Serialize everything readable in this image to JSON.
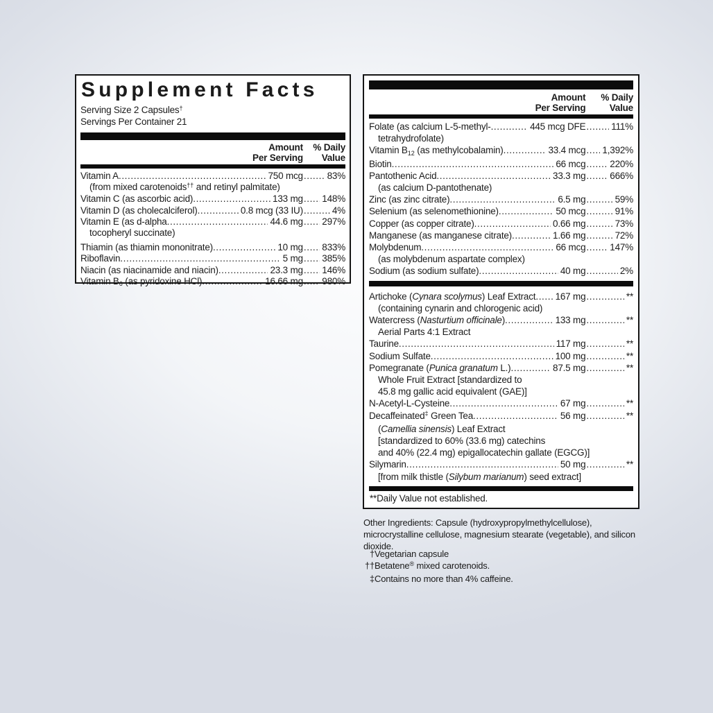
{
  "background": {
    "edge_color": "#d8dce5",
    "center_color": "#fdfdfe"
  },
  "panel_left": {
    "title": "Supplement Facts",
    "serving_size": "Serving Size 2 Capsules",
    "serving_size_mark": "†",
    "servings_per_container": "Servings Per Container 21",
    "amount_header": [
      "Amount",
      "Per Serving"
    ],
    "dv_header": [
      "% Daily",
      "Value"
    ],
    "rows": [
      {
        "name": "Vitamin A",
        "amount": "750 mcg",
        "dv": "83%",
        "sublines": [
          [
            [
              "",
              "(from mixed carotenoids"
            ],
            [
              "sup",
              "††"
            ],
            [
              "",
              " and retinyl palmitate)"
            ]
          ]
        ]
      },
      {
        "name": "Vitamin C (as ascorbic acid) ",
        "amount": "133 mg",
        "dv": "148%"
      },
      {
        "name": "Vitamin D (as cholecalciferol) ",
        "amount": "0.8 mcg (33 IU)",
        "dv": "4%"
      },
      {
        "name": "Vitamin E (as d-alpha ",
        "amount": "44.6 mg",
        "dv": "297%",
        "sublines": [
          "tocopheryl succinate)"
        ]
      },
      {
        "name": "Thiamin (as thiamin mononitrate) ",
        "amount": "10 mg",
        "dv": "833%",
        "gap": true
      },
      {
        "name": "Riboflavin ",
        "amount": "5 mg",
        "dv": "385%"
      },
      {
        "name": "Niacin (as niacinamide and niacin) ",
        "amount": "23.3 mg",
        "dv": "146%"
      },
      {
        "name": [
          [
            "",
            "Vitamin B"
          ],
          [
            "sub",
            "6"
          ],
          [
            "",
            " (as pyridoxine HCl) "
          ]
        ],
        "amount": "16.66 mg",
        "dv": "980%"
      }
    ]
  },
  "panel_right": {
    "amount_header": [
      "Amount",
      "Per Serving"
    ],
    "dv_header": [
      "% Daily",
      "Value"
    ],
    "rows_minerals": [
      {
        "name": "Folate (as calcium L-5-methyl- ",
        "amount": "445 mcg DFE",
        "dv": "111%",
        "sublines": [
          "tetrahydrofolate)"
        ]
      },
      {
        "name": [
          [
            "",
            "Vitamin B"
          ],
          [
            "sub",
            "12"
          ],
          [
            "",
            " (as methylcobalamin) "
          ]
        ],
        "amount": "33.4 mcg",
        "dv": "1,392%"
      },
      {
        "name": "Biotin ",
        "amount": "66 mcg",
        "dv": "220%"
      },
      {
        "name": "Pantothenic Acid",
        "amount": "33.3 mg",
        "dv": "666%",
        "sublines": [
          "(as calcium D-pantothenate)"
        ]
      },
      {
        "name": "Zinc (as zinc citrate) ",
        "amount": "6.5 mg",
        "dv": "59%"
      },
      {
        "name": "Selenium (as selenomethionine) ",
        "amount": "50 mcg",
        "dv": "91%"
      },
      {
        "name": "Copper (as copper citrate) ",
        "amount": "0.66 mg",
        "dv": "73%"
      },
      {
        "name": "Manganese (as manganese citrate) ",
        "amount": "1.66 mg",
        "dv": "72%"
      },
      {
        "name": "Molybdenum",
        "amount": "66 mcg",
        "dv": "147%",
        "sublines": [
          "(as molybdenum aspartate complex)"
        ]
      },
      {
        "name": "Sodium (as sodium sulfate) ",
        "amount": "40 mg",
        "dv": "2%"
      }
    ],
    "rows_botanicals": [
      {
        "name": [
          [
            "",
            "Artichoke ("
          ],
          [
            "i",
            "Cynara scolymus"
          ],
          [
            "",
            ") Leaf Extract"
          ]
        ],
        "amount": "167 mg",
        "dv": "**",
        "sublines": [
          "(containing cynarin and chlorogenic acid)"
        ]
      },
      {
        "name": [
          [
            "",
            "Watercress ("
          ],
          [
            "i",
            "Nasturtium officinale"
          ],
          [
            "",
            ")"
          ]
        ],
        "amount": "133 mg",
        "dv": "**",
        "sublines": [
          "Aerial Parts 4:1 Extract"
        ]
      },
      {
        "name": "Taurine ",
        "amount": "117 mg",
        "dv": "**"
      },
      {
        "name": "Sodium Sulfate ",
        "amount": "100 mg",
        "dv": "**"
      },
      {
        "name": [
          [
            "",
            "Pomegranate ("
          ],
          [
            "i",
            "Punica granatum"
          ],
          [
            "",
            " L.) "
          ]
        ],
        "amount": "87.5 mg",
        "dv": "**",
        "sublines": [
          "Whole Fruit Extract [standardized to",
          "45.8 mg gallic acid equivalent (GAE)]"
        ]
      },
      {
        "name": "N-Acetyl-L-Cysteine ",
        "amount": "67 mg",
        "dv": "**"
      },
      {
        "name": [
          [
            "",
            "Decaffeinated"
          ],
          [
            "sup",
            "‡"
          ],
          [
            "",
            " Green Tea"
          ]
        ],
        "amount": "56 mg",
        "dv": "**",
        "sublines": [
          [
            [
              "",
              "("
            ],
            [
              "i",
              "Camellia sinensis"
            ],
            [
              "",
              ") Leaf Extract"
            ]
          ],
          "[standardized to 60% (33.6 mg) catechins",
          "and 40% (22.4 mg) epigallocatechin gallate (EGCG)]"
        ]
      },
      {
        "name": "Silymarin ",
        "amount": "50 mg",
        "dv": "**",
        "sublines": [
          [
            [
              "",
              "[from milk thistle ("
            ],
            [
              "i",
              "Silybum marianum"
            ],
            [
              "",
              ") seed extract]"
            ]
          ]
        ]
      }
    ],
    "dv_footnote": "**Daily Value not established."
  },
  "below_panel": {
    "other_ingredients": "Other Ingredients: Capsule (hydroxypropylmethylcellulose), microcrystalline cellulose, magnesium stearate (vegetable), and silicon dioxide.",
    "footnotes": [
      {
        "mark": "†",
        "text": "Vegetarian capsule"
      },
      {
        "mark": "††",
        "text": [
          [
            "",
            "Betatene"
          ],
          [
            "sup",
            "®"
          ],
          [
            "",
            " mixed carotenoids."
          ]
        ]
      },
      {
        "mark": "‡",
        "text": "Contains no more than 4% caffeine."
      }
    ]
  }
}
